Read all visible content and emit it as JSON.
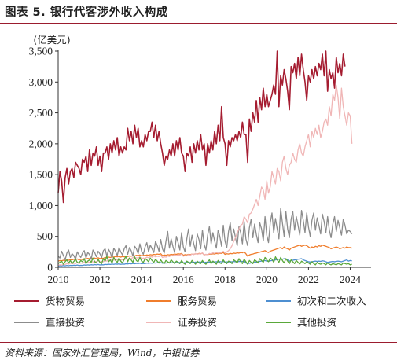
{
  "figure_title": "图表 5. 银行代客涉外收入构成",
  "source_note": "资料来源：国家外汇管理局，Wind，中银证券",
  "chart_data": {
    "type": "line",
    "unit_label": "(亿美元)",
    "ylim": [
      0,
      3500
    ],
    "yticks": [
      0,
      500,
      1000,
      1500,
      2000,
      2500,
      3000,
      3500
    ],
    "ytick_labels": [
      "0",
      "500",
      "1,000",
      "1,500",
      "2,000",
      "2,500",
      "3,000",
      "3,500"
    ],
    "xlim": [
      2010,
      2025
    ],
    "xticks": [
      2010,
      2012,
      2014,
      2016,
      2018,
      2020,
      2022,
      2024
    ],
    "xtick_labels": [
      "2010",
      "2012",
      "2014",
      "2016",
      "2018",
      "2020",
      "2022",
      "2024"
    ],
    "x_frequency": "monthly, Jan 2010 – Dec 2024",
    "legend_position": "bottom",
    "series": [
      {
        "name": "货物贸易",
        "color": "#a51c30",
        "values": [
          1200,
          1550,
          1400,
          1050,
          1450,
          1600,
          1350,
          1550,
          1600,
          1450,
          1700,
          1650,
          1600,
          1500,
          1750,
          1700,
          1800,
          1550,
          1900,
          1650,
          1850,
          1800,
          1950,
          1650,
          1800,
          1550,
          1850,
          1850,
          1950,
          1750,
          2000,
          1850,
          2050,
          1900,
          2100,
          1800,
          1950,
          1850,
          1950,
          1900,
          2250,
          2050,
          2200,
          2000,
          2300,
          2100,
          2250,
          1950,
          2050,
          1950,
          2150,
          2050,
          2200,
          2200,
          2350,
          2100,
          2300,
          2050,
          2200,
          2000,
          1850,
          1650,
          1800,
          1750,
          1900,
          1800,
          2000,
          1800,
          2050,
          1900,
          2100,
          1850,
          1800,
          1550,
          1850,
          1800,
          1950,
          1700,
          2000,
          1850,
          2050,
          1900,
          2150,
          1900,
          2000,
          1650,
          2000,
          1850,
          2050,
          1900,
          2200,
          2000,
          2300,
          2050,
          2600,
          2100,
          2000,
          1650,
          2050,
          1950,
          2100,
          2050,
          2150,
          2050,
          2200,
          2100,
          2350,
          2150,
          2150,
          1700,
          2400,
          2200,
          2500,
          2350,
          2700,
          2350,
          2750,
          2550,
          2900,
          2600,
          2800,
          2600,
          2700,
          2800,
          2950,
          2800,
          3500,
          2600,
          3100,
          2950,
          3200,
          3050,
          2850,
          2550,
          3250,
          3150,
          3300,
          3050,
          3400,
          3100,
          3450,
          3200,
          3000,
          2700,
          3100,
          3000,
          3200,
          3050,
          3250,
          3100,
          3300,
          3200,
          3450,
          3100,
          3500,
          2850,
          3200,
          3050,
          3150,
          2900,
          3400,
          3150,
          3300,
          3100,
          3450,
          3250
        ]
      },
      {
        "name": "服务贸易",
        "color": "#f07d2c",
        "values": [
          100,
          110,
          105,
          115,
          110,
          120,
          115,
          125,
          120,
          130,
          125,
          135,
          120,
          130,
          125,
          140,
          135,
          145,
          140,
          150,
          145,
          150,
          140,
          155,
          140,
          150,
          145,
          160,
          155,
          165,
          160,
          170,
          165,
          175,
          170,
          180,
          165,
          175,
          170,
          180,
          175,
          185,
          180,
          190,
          185,
          195,
          190,
          200,
          185,
          195,
          190,
          200,
          195,
          205,
          200,
          210,
          205,
          215,
          210,
          220,
          190,
          200,
          195,
          205,
          200,
          210,
          205,
          215,
          210,
          220,
          215,
          225,
          195,
          205,
          200,
          210,
          205,
          215,
          210,
          220,
          215,
          225,
          220,
          230,
          200,
          210,
          205,
          215,
          210,
          220,
          215,
          225,
          220,
          230,
          225,
          240,
          210,
          220,
          215,
          225,
          220,
          230,
          225,
          235,
          230,
          240,
          235,
          250,
          220,
          180,
          200,
          210,
          215,
          225,
          230,
          240,
          245,
          255,
          260,
          270,
          250,
          240,
          260,
          270,
          280,
          290,
          300,
          310,
          320,
          300,
          330,
          310,
          300,
          280,
          310,
          320,
          330,
          340,
          350,
          360,
          340,
          350,
          360,
          350,
          330,
          310,
          330,
          320,
          340,
          330,
          350,
          340,
          360,
          350,
          340,
          330,
          320,
          300,
          310,
          320,
          330,
          320,
          300,
          310,
          320,
          310,
          330,
          320,
          320,
          310
        ]
      },
      {
        "name": "初次和二次收入",
        "color": "#4e8fd1",
        "values": [
          20,
          25,
          22,
          28,
          24,
          30,
          26,
          32,
          28,
          34,
          30,
          36,
          28,
          32,
          30,
          38,
          34,
          40,
          36,
          42,
          38,
          44,
          40,
          46,
          38,
          42,
          40,
          48,
          44,
          50,
          46,
          52,
          48,
          54,
          50,
          56,
          48,
          52,
          50,
          58,
          54,
          60,
          56,
          62,
          58,
          64,
          60,
          66,
          58,
          62,
          60,
          68,
          64,
          70,
          66,
          72,
          68,
          74,
          70,
          76,
          66,
          70,
          68,
          74,
          70,
          76,
          72,
          78,
          74,
          80,
          76,
          82,
          72,
          76,
          74,
          80,
          76,
          82,
          78,
          84,
          80,
          86,
          82,
          88,
          78,
          82,
          80,
          86,
          82,
          88,
          84,
          90,
          86,
          92,
          88,
          94,
          84,
          88,
          86,
          92,
          88,
          94,
          90,
          96,
          92,
          98,
          94,
          100,
          70,
          60,
          65,
          70,
          75,
          80,
          85,
          90,
          95,
          100,
          105,
          110,
          100,
          95,
          105,
          110,
          115,
          120,
          125,
          130,
          135,
          130,
          140,
          135,
          120,
          100,
          110,
          115,
          120,
          125,
          130,
          135,
          140,
          120,
          110,
          100,
          90,
          85,
          90,
          95,
          100,
          95,
          100,
          95,
          105,
          100,
          90,
          80,
          85,
          90,
          95,
          90,
          95,
          100,
          95,
          90,
          100,
          110,
          120,
          100,
          110,
          105
        ]
      },
      {
        "name": "直接投资",
        "color": "#8c8c8c",
        "values": [
          180,
          150,
          260,
          190,
          120,
          230,
          280,
          160,
          220,
          190,
          130,
          250,
          200,
          160,
          230,
          270,
          150,
          240,
          210,
          130,
          280,
          240,
          170,
          260,
          220,
          160,
          270,
          300,
          180,
          290,
          240,
          150,
          310,
          260,
          190,
          320,
          250,
          200,
          300,
          350,
          210,
          320,
          270,
          180,
          340,
          300,
          220,
          380,
          260,
          210,
          330,
          400,
          250,
          360,
          300,
          240,
          420,
          350,
          260,
          450,
          300,
          230,
          420,
          580,
          310,
          460,
          340,
          240,
          500,
          400,
          280,
          560,
          330,
          250,
          460,
          620,
          340,
          520,
          380,
          270,
          540,
          450,
          300,
          600,
          370,
          280,
          520,
          660,
          380,
          560,
          430,
          310,
          600,
          500,
          340,
          680,
          420,
          320,
          580,
          720,
          430,
          620,
          480,
          350,
          660,
          560,
          380,
          740,
          460,
          350,
          640,
          780,
          480,
          700,
          530,
          400,
          720,
          620,
          430,
          820,
          520,
          400,
          720,
          880,
          560,
          790,
          620,
          460,
          950,
          720,
          500,
          900,
          620,
          480,
          780,
          900,
          600,
          820,
          680,
          520,
          920,
          760,
          560,
          880,
          650,
          500,
          760,
          880,
          600,
          800,
          680,
          540,
          860,
          740,
          560,
          820,
          600,
          480,
          700,
          820,
          580,
          760,
          640,
          520,
          780,
          680,
          540,
          600,
          580,
          540
        ]
      },
      {
        "name": "证券投资",
        "color": "#f0b6b6",
        "values": [
          30,
          40,
          35,
          50,
          45,
          60,
          50,
          70,
          55,
          65,
          60,
          80,
          60,
          70,
          65,
          85,
          75,
          90,
          80,
          100,
          85,
          95,
          90,
          110,
          85,
          95,
          90,
          110,
          100,
          120,
          110,
          130,
          115,
          125,
          120,
          140,
          115,
          125,
          120,
          140,
          130,
          150,
          140,
          160,
          145,
          155,
          150,
          170,
          140,
          150,
          145,
          165,
          155,
          175,
          165,
          185,
          170,
          180,
          175,
          195,
          160,
          170,
          165,
          185,
          175,
          195,
          185,
          205,
          190,
          200,
          195,
          215,
          180,
          190,
          185,
          205,
          195,
          215,
          205,
          225,
          210,
          220,
          215,
          235,
          200,
          210,
          205,
          225,
          215,
          235,
          225,
          245,
          230,
          240,
          235,
          260,
          230,
          250,
          270,
          300,
          350,
          420,
          480,
          560,
          620,
          680,
          700,
          820,
          780,
          720,
          860,
          880,
          940,
          1020,
          1100,
          1000,
          1150,
          1300,
          1250,
          1100,
          1400,
          1200,
          1300,
          1550,
          1450,
          1350,
          1600,
          1550,
          1400,
          1700,
          1800,
          1600,
          1500,
          1650,
          1700,
          1850,
          1750,
          1700,
          1900,
          2000,
          1850,
          1800,
          1950,
          2050,
          2150,
          1950,
          2200,
          2100,
          2250,
          2150,
          2300,
          2100,
          2200,
          2350,
          2400,
          2300,
          2600,
          2450,
          2800,
          2700,
          2950,
          2750,
          2400,
          2900,
          2600,
          2450,
          2300,
          2500,
          2450,
          2000
        ]
      },
      {
        "name": "其他投资",
        "color": "#5aa83a",
        "values": [
          60,
          80,
          100,
          50,
          90,
          120,
          70,
          110,
          60,
          95,
          130,
          80,
          70,
          110,
          90,
          140,
          60,
          100,
          120,
          80,
          150,
          90,
          70,
          130,
          80,
          60,
          140,
          100,
          180,
          90,
          120,
          70,
          160,
          110,
          80,
          150,
          100,
          70,
          130,
          180,
          90,
          150,
          120,
          80,
          170,
          110,
          90,
          160,
          100,
          80,
          140,
          120,
          90,
          150,
          110,
          80,
          130,
          100,
          70,
          120,
          80,
          60,
          110,
          90,
          70,
          120,
          90,
          60,
          100,
          80,
          60,
          110,
          70,
          50,
          100,
          80,
          60,
          110,
          80,
          50,
          100,
          70,
          60,
          110,
          70,
          50,
          90,
          120,
          60,
          100,
          80,
          50,
          110,
          70,
          60,
          120,
          80,
          60,
          100,
          90,
          60,
          120,
          100,
          70,
          140,
          90,
          60,
          130,
          90,
          50,
          110,
          80,
          60,
          120,
          100,
          70,
          140,
          110,
          80,
          160,
          120,
          90,
          150,
          130,
          80,
          170,
          120,
          80,
          160,
          110,
          70,
          140,
          100,
          60,
          120,
          90,
          60,
          110,
          80,
          50,
          100,
          80,
          60,
          90,
          70,
          50,
          90,
          60,
          40,
          80,
          60,
          50,
          70,
          60,
          40,
          70,
          50,
          40,
          60,
          50,
          40,
          60,
          50,
          40,
          70,
          60,
          50,
          60,
          40,
          50
        ]
      }
    ]
  }
}
